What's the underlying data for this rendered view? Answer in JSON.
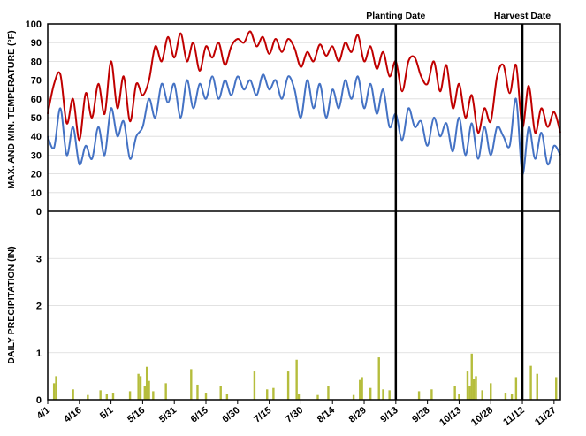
{
  "chart_data": {
    "type": "line",
    "temperature_panel": {
      "ylabel": "MAX. AND MIN. TEMPERATURE (°F)",
      "ylim": [
        0,
        100
      ],
      "yticks": [
        "0",
        "10",
        "20",
        "30",
        "40",
        "50",
        "60",
        "70",
        "80",
        "90",
        "100"
      ],
      "grid": true
    },
    "precipitation_panel": {
      "type": "bar",
      "ylabel": "DAILY PRECIPITATION (IN)",
      "ylim": [
        0,
        4
      ],
      "yticks": [
        "0",
        "1",
        "2",
        "3"
      ],
      "grid": true
    },
    "xlim": [
      "4/1",
      "11/30"
    ],
    "xticks": [
      "4/1",
      "4/16",
      "5/1",
      "5/16",
      "5/31",
      "6/15",
      "6/30",
      "7/15",
      "7/30",
      "8/14",
      "8/29",
      "9/13",
      "9/28",
      "10/13",
      "10/28",
      "11/12",
      "11/27"
    ],
    "colors": {
      "max_temp": "#c00000",
      "min_temp": "#4472c4",
      "precip": "#b5bd3c"
    },
    "series": [
      {
        "key": "max_temp",
        "points": [
          [
            "4/1",
            52
          ],
          [
            "4/4",
            68
          ],
          [
            "4/7",
            73
          ],
          [
            "4/10",
            47
          ],
          [
            "4/13",
            60
          ],
          [
            "4/16",
            38
          ],
          [
            "4/19",
            63
          ],
          [
            "4/22",
            50
          ],
          [
            "4/25",
            68
          ],
          [
            "4/28",
            52
          ],
          [
            "5/1",
            80
          ],
          [
            "5/4",
            55
          ],
          [
            "5/7",
            72
          ],
          [
            "5/10",
            48
          ],
          [
            "5/13",
            68
          ],
          [
            "5/16",
            62
          ],
          [
            "5/19",
            70
          ],
          [
            "5/22",
            88
          ],
          [
            "5/25",
            80
          ],
          [
            "5/28",
            93
          ],
          [
            "5/31",
            82
          ],
          [
            "6/3",
            95
          ],
          [
            "6/6",
            80
          ],
          [
            "6/9",
            90
          ],
          [
            "6/12",
            75
          ],
          [
            "6/15",
            88
          ],
          [
            "6/18",
            82
          ],
          [
            "6/21",
            90
          ],
          [
            "6/24",
            78
          ],
          [
            "6/27",
            88
          ],
          [
            "6/30",
            92
          ],
          [
            "7/3",
            90
          ],
          [
            "7/6",
            96
          ],
          [
            "7/9",
            88
          ],
          [
            "7/12",
            93
          ],
          [
            "7/15",
            84
          ],
          [
            "7/18",
            92
          ],
          [
            "7/21",
            85
          ],
          [
            "7/24",
            92
          ],
          [
            "7/27",
            87
          ],
          [
            "7/30",
            77
          ],
          [
            "8/2",
            85
          ],
          [
            "8/5",
            80
          ],
          [
            "8/8",
            89
          ],
          [
            "8/11",
            83
          ],
          [
            "8/14",
            88
          ],
          [
            "8/17",
            80
          ],
          [
            "8/20",
            90
          ],
          [
            "8/23",
            85
          ],
          [
            "8/26",
            94
          ],
          [
            "8/29",
            80
          ],
          [
            "9/1",
            88
          ],
          [
            "9/4",
            76
          ],
          [
            "9/7",
            85
          ],
          [
            "9/10",
            72
          ],
          [
            "9/13",
            80
          ],
          [
            "9/16",
            64
          ],
          [
            "9/19",
            80
          ],
          [
            "9/22",
            82
          ],
          [
            "9/25",
            72
          ],
          [
            "9/28",
            68
          ],
          [
            "10/1",
            80
          ],
          [
            "10/4",
            64
          ],
          [
            "10/7",
            78
          ],
          [
            "10/10",
            55
          ],
          [
            "10/13",
            68
          ],
          [
            "10/16",
            50
          ],
          [
            "10/19",
            62
          ],
          [
            "10/22",
            42
          ],
          [
            "10/25",
            55
          ],
          [
            "10/28",
            48
          ],
          [
            "10/31",
            72
          ],
          [
            "11/3",
            78
          ],
          [
            "11/6",
            63
          ],
          [
            "11/9",
            78
          ],
          [
            "11/12",
            45
          ],
          [
            "11/15",
            67
          ],
          [
            "11/18",
            42
          ],
          [
            "11/21",
            55
          ],
          [
            "11/24",
            45
          ],
          [
            "11/27",
            53
          ],
          [
            "11/30",
            42
          ]
        ]
      },
      {
        "key": "min_temp",
        "points": [
          [
            "4/1",
            40
          ],
          [
            "4/4",
            34
          ],
          [
            "4/7",
            55
          ],
          [
            "4/10",
            30
          ],
          [
            "4/13",
            45
          ],
          [
            "4/16",
            25
          ],
          [
            "4/19",
            35
          ],
          [
            "4/22",
            28
          ],
          [
            "4/25",
            45
          ],
          [
            "4/28",
            30
          ],
          [
            "5/1",
            55
          ],
          [
            "5/4",
            40
          ],
          [
            "5/7",
            48
          ],
          [
            "5/10",
            28
          ],
          [
            "5/13",
            40
          ],
          [
            "5/16",
            45
          ],
          [
            "5/19",
            60
          ],
          [
            "5/22",
            50
          ],
          [
            "5/25",
            68
          ],
          [
            "5/28",
            58
          ],
          [
            "5/31",
            68
          ],
          [
            "6/3",
            50
          ],
          [
            "6/6",
            70
          ],
          [
            "6/9",
            55
          ],
          [
            "6/12",
            68
          ],
          [
            "6/15",
            60
          ],
          [
            "6/18",
            72
          ],
          [
            "6/21",
            60
          ],
          [
            "6/24",
            70
          ],
          [
            "6/27",
            62
          ],
          [
            "6/30",
            72
          ],
          [
            "7/3",
            65
          ],
          [
            "7/6",
            70
          ],
          [
            "7/9",
            62
          ],
          [
            "7/12",
            73
          ],
          [
            "7/15",
            65
          ],
          [
            "7/18",
            70
          ],
          [
            "7/21",
            60
          ],
          [
            "7/24",
            72
          ],
          [
            "7/27",
            65
          ],
          [
            "7/30",
            50
          ],
          [
            "8/2",
            70
          ],
          [
            "8/5",
            55
          ],
          [
            "8/8",
            68
          ],
          [
            "8/11",
            50
          ],
          [
            "8/14",
            65
          ],
          [
            "8/17",
            55
          ],
          [
            "8/20",
            70
          ],
          [
            "8/23",
            60
          ],
          [
            "8/26",
            72
          ],
          [
            "8/29",
            55
          ],
          [
            "9/1",
            68
          ],
          [
            "9/4",
            52
          ],
          [
            "9/7",
            65
          ],
          [
            "9/10",
            45
          ],
          [
            "9/13",
            52
          ],
          [
            "9/16",
            38
          ],
          [
            "9/19",
            55
          ],
          [
            "9/22",
            45
          ],
          [
            "9/25",
            48
          ],
          [
            "9/28",
            35
          ],
          [
            "10/1",
            50
          ],
          [
            "10/4",
            40
          ],
          [
            "10/7",
            47
          ],
          [
            "10/10",
            32
          ],
          [
            "10/13",
            50
          ],
          [
            "10/16",
            30
          ],
          [
            "10/19",
            47
          ],
          [
            "10/22",
            28
          ],
          [
            "10/25",
            45
          ],
          [
            "10/28",
            30
          ],
          [
            "10/31",
            45
          ],
          [
            "11/3",
            40
          ],
          [
            "11/6",
            35
          ],
          [
            "11/9",
            60
          ],
          [
            "11/12",
            20
          ],
          [
            "11/15",
            45
          ],
          [
            "11/18",
            28
          ],
          [
            "11/21",
            42
          ],
          [
            "11/24",
            25
          ],
          [
            "11/27",
            35
          ],
          [
            "11/30",
            30
          ]
        ]
      },
      {
        "key": "precip",
        "type": "bar",
        "points": [
          [
            "4/4",
            0.35
          ],
          [
            "4/5",
            0.5
          ],
          [
            "4/13",
            0.22
          ],
          [
            "4/20",
            0.1
          ],
          [
            "4/26",
            0.2
          ],
          [
            "4/29",
            0.12
          ],
          [
            "5/2",
            0.15
          ],
          [
            "5/10",
            0.18
          ],
          [
            "5/14",
            0.55
          ],
          [
            "5/15",
            0.5
          ],
          [
            "5/17",
            0.3
          ],
          [
            "5/18",
            0.7
          ],
          [
            "5/19",
            0.4
          ],
          [
            "5/21",
            0.18
          ],
          [
            "5/27",
            0.35
          ],
          [
            "6/8",
            0.65
          ],
          [
            "6/11",
            0.32
          ],
          [
            "6/15",
            0.15
          ],
          [
            "6/22",
            0.3
          ],
          [
            "6/25",
            0.12
          ],
          [
            "7/8",
            0.6
          ],
          [
            "7/14",
            0.22
          ],
          [
            "7/17",
            0.25
          ],
          [
            "7/24",
            0.6
          ],
          [
            "7/28",
            0.85
          ],
          [
            "7/29",
            0.12
          ],
          [
            "8/7",
            0.1
          ],
          [
            "8/12",
            0.3
          ],
          [
            "8/24",
            0.1
          ],
          [
            "8/27",
            0.42
          ],
          [
            "8/28",
            0.48
          ],
          [
            "9/1",
            0.25
          ],
          [
            "9/5",
            0.9
          ],
          [
            "9/7",
            0.22
          ],
          [
            "9/10",
            0.2
          ],
          [
            "9/24",
            0.18
          ],
          [
            "9/30",
            0.22
          ],
          [
            "10/11",
            0.3
          ],
          [
            "10/13",
            0.12
          ],
          [
            "10/17",
            0.6
          ],
          [
            "10/18",
            0.3
          ],
          [
            "10/19",
            0.98
          ],
          [
            "10/20",
            0.45
          ],
          [
            "10/21",
            0.5
          ],
          [
            "10/24",
            0.2
          ],
          [
            "10/28",
            0.35
          ],
          [
            "11/4",
            0.15
          ],
          [
            "11/7",
            0.12
          ],
          [
            "11/9",
            0.48
          ],
          [
            "11/16",
            0.72
          ],
          [
            "11/19",
            0.55
          ],
          [
            "11/28",
            0.48
          ]
        ]
      }
    ],
    "annotations": [
      {
        "label": "Planting Date",
        "date": "9/13"
      },
      {
        "label": "Harvest Date",
        "date": "11/12"
      }
    ]
  }
}
